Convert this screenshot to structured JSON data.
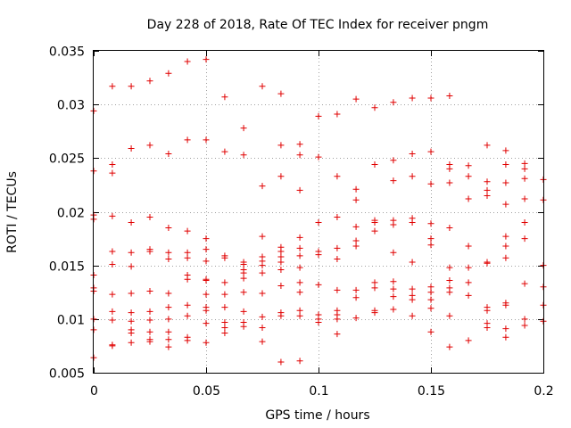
{
  "chart_data": {
    "type": "scatter",
    "title": "Day 228 of 2018, Rate Of TEC Index for receiver pngm",
    "xlabel": "GPS time / hours",
    "ylabel": "ROTI / TECUs",
    "xlim": [
      0,
      0.2
    ],
    "ylim": [
      0.005,
      0.035
    ],
    "grid": true,
    "marker": "+",
    "color": "#e00000",
    "x_ticks": [
      "0",
      "0.05",
      "0.1",
      "0.15",
      "0.2"
    ],
    "y_ticks": [
      "0.005",
      "0.01",
      "0.015",
      "0.02",
      "0.025",
      "0.03",
      "0.035"
    ],
    "series": [
      {
        "name": "ROTI",
        "points": [
          [
            0,
            0.0294
          ],
          [
            0,
            0.0238
          ],
          [
            0,
            0.0197
          ],
          [
            0,
            0.0193
          ],
          [
            0,
            0.0141
          ],
          [
            0,
            0.0129
          ],
          [
            0,
            0.0126
          ],
          [
            0,
            0.01
          ],
          [
            0,
            0.009
          ],
          [
            0,
            0.0064
          ],
          [
            0.0083,
            0.0317
          ],
          [
            0.0083,
            0.0244
          ],
          [
            0.0083,
            0.0236
          ],
          [
            0.0083,
            0.0196
          ],
          [
            0.0083,
            0.0163
          ],
          [
            0.0083,
            0.0151
          ],
          [
            0.0083,
            0.0123
          ],
          [
            0.0083,
            0.0107
          ],
          [
            0.0083,
            0.0099
          ],
          [
            0.0083,
            0.0076
          ],
          [
            0.0083,
            0.0075
          ],
          [
            0.0167,
            0.0317
          ],
          [
            0.0167,
            0.0259
          ],
          [
            0.0167,
            0.019
          ],
          [
            0.0167,
            0.0162
          ],
          [
            0.0167,
            0.0149
          ],
          [
            0.0167,
            0.0124
          ],
          [
            0.0167,
            0.0106
          ],
          [
            0.0167,
            0.0098
          ],
          [
            0.0167,
            0.009
          ],
          [
            0.0167,
            0.0087
          ],
          [
            0.0167,
            0.0078
          ],
          [
            0.025,
            0.0322
          ],
          [
            0.025,
            0.0262
          ],
          [
            0.025,
            0.0195
          ],
          [
            0.025,
            0.0165
          ],
          [
            0.025,
            0.0163
          ],
          [
            0.025,
            0.0126
          ],
          [
            0.025,
            0.0107
          ],
          [
            0.025,
            0.0099
          ],
          [
            0.025,
            0.0088
          ],
          [
            0.025,
            0.0081
          ],
          [
            0.025,
            0.0079
          ],
          [
            0.0333,
            0.0329
          ],
          [
            0.0333,
            0.0254
          ],
          [
            0.0333,
            0.0185
          ],
          [
            0.0333,
            0.0162
          ],
          [
            0.0333,
            0.0156
          ],
          [
            0.0333,
            0.0124
          ],
          [
            0.0333,
            0.0111
          ],
          [
            0.0333,
            0.01
          ],
          [
            0.0333,
            0.0088
          ],
          [
            0.0333,
            0.0081
          ],
          [
            0.0333,
            0.0074
          ],
          [
            0.0417,
            0.034
          ],
          [
            0.0417,
            0.0267
          ],
          [
            0.0417,
            0.0182
          ],
          [
            0.0417,
            0.0162
          ],
          [
            0.0417,
            0.0157
          ],
          [
            0.0417,
            0.0141
          ],
          [
            0.0417,
            0.0137
          ],
          [
            0.0417,
            0.0113
          ],
          [
            0.0417,
            0.0103
          ],
          [
            0.0417,
            0.0083
          ],
          [
            0.0417,
            0.008
          ],
          [
            0.05,
            0.0342
          ],
          [
            0.05,
            0.0267
          ],
          [
            0.05,
            0.0175
          ],
          [
            0.05,
            0.0165
          ],
          [
            0.05,
            0.0154
          ],
          [
            0.05,
            0.0137
          ],
          [
            0.05,
            0.0136
          ],
          [
            0.05,
            0.0123
          ],
          [
            0.05,
            0.0111
          ],
          [
            0.05,
            0.0108
          ],
          [
            0.05,
            0.0096
          ],
          [
            0.05,
            0.0078
          ],
          [
            0.0583,
            0.0307
          ],
          [
            0.0583,
            0.0256
          ],
          [
            0.0583,
            0.0159
          ],
          [
            0.0583,
            0.0157
          ],
          [
            0.0583,
            0.0134
          ],
          [
            0.0583,
            0.0123
          ],
          [
            0.0583,
            0.0111
          ],
          [
            0.0583,
            0.0097
          ],
          [
            0.0583,
            0.0092
          ],
          [
            0.0583,
            0.0087
          ],
          [
            0.0667,
            0.0278
          ],
          [
            0.0667,
            0.0253
          ],
          [
            0.0667,
            0.0153
          ],
          [
            0.0667,
            0.0151
          ],
          [
            0.0667,
            0.0146
          ],
          [
            0.0667,
            0.0143
          ],
          [
            0.0667,
            0.0138
          ],
          [
            0.0667,
            0.0125
          ],
          [
            0.0667,
            0.0107
          ],
          [
            0.0667,
            0.0097
          ],
          [
            0.0667,
            0.0093
          ],
          [
            0.075,
            0.0317
          ],
          [
            0.075,
            0.0224
          ],
          [
            0.075,
            0.0177
          ],
          [
            0.075,
            0.0158
          ],
          [
            0.075,
            0.0154
          ],
          [
            0.075,
            0.015
          ],
          [
            0.075,
            0.0143
          ],
          [
            0.075,
            0.0124
          ],
          [
            0.075,
            0.0102
          ],
          [
            0.075,
            0.0092
          ],
          [
            0.075,
            0.0079
          ],
          [
            0.0833,
            0.031
          ],
          [
            0.0833,
            0.0262
          ],
          [
            0.0833,
            0.0233
          ],
          [
            0.0833,
            0.0167
          ],
          [
            0.0833,
            0.0163
          ],
          [
            0.0833,
            0.0158
          ],
          [
            0.0833,
            0.0153
          ],
          [
            0.0833,
            0.0146
          ],
          [
            0.0833,
            0.0131
          ],
          [
            0.0833,
            0.0106
          ],
          [
            0.0833,
            0.0103
          ],
          [
            0.0833,
            0.006
          ],
          [
            0.0917,
            0.0263
          ],
          [
            0.0917,
            0.0253
          ],
          [
            0.0917,
            0.022
          ],
          [
            0.0917,
            0.0176
          ],
          [
            0.0917,
            0.0166
          ],
          [
            0.0917,
            0.0159
          ],
          [
            0.0917,
            0.0148
          ],
          [
            0.0917,
            0.0134
          ],
          [
            0.0917,
            0.0125
          ],
          [
            0.0917,
            0.0108
          ],
          [
            0.0917,
            0.0103
          ],
          [
            0.0917,
            0.0061
          ],
          [
            0.1,
            0.0289
          ],
          [
            0.1,
            0.0251
          ],
          [
            0.1,
            0.019
          ],
          [
            0.1,
            0.0163
          ],
          [
            0.1,
            0.016
          ],
          [
            0.1,
            0.0132
          ],
          [
            0.1,
            0.0104
          ],
          [
            0.1,
            0.01
          ],
          [
            0.1,
            0.0097
          ],
          [
            0.1083,
            0.0291
          ],
          [
            0.1083,
            0.0233
          ],
          [
            0.1083,
            0.0195
          ],
          [
            0.1083,
            0.0166
          ],
          [
            0.1083,
            0.0156
          ],
          [
            0.1083,
            0.0127
          ],
          [
            0.1083,
            0.0108
          ],
          [
            0.1083,
            0.0104
          ],
          [
            0.1083,
            0.01
          ],
          [
            0.1083,
            0.0086
          ],
          [
            0.1167,
            0.0305
          ],
          [
            0.1167,
            0.0221
          ],
          [
            0.1167,
            0.0211
          ],
          [
            0.1167,
            0.0186
          ],
          [
            0.1167,
            0.0173
          ],
          [
            0.1167,
            0.0168
          ],
          [
            0.1167,
            0.0127
          ],
          [
            0.1167,
            0.012
          ],
          [
            0.1167,
            0.0101
          ],
          [
            0.125,
            0.0297
          ],
          [
            0.125,
            0.0244
          ],
          [
            0.125,
            0.0192
          ],
          [
            0.125,
            0.019
          ],
          [
            0.125,
            0.0182
          ],
          [
            0.125,
            0.0134
          ],
          [
            0.125,
            0.0129
          ],
          [
            0.125,
            0.0108
          ],
          [
            0.125,
            0.0106
          ],
          [
            0.1333,
            0.0302
          ],
          [
            0.1333,
            0.0248
          ],
          [
            0.1333,
            0.0229
          ],
          [
            0.1333,
            0.0192
          ],
          [
            0.1333,
            0.0188
          ],
          [
            0.1333,
            0.0162
          ],
          [
            0.1333,
            0.0135
          ],
          [
            0.1333,
            0.0128
          ],
          [
            0.1333,
            0.0121
          ],
          [
            0.1333,
            0.0109
          ],
          [
            0.1417,
            0.0306
          ],
          [
            0.1417,
            0.0254
          ],
          [
            0.1417,
            0.0233
          ],
          [
            0.1417,
            0.0194
          ],
          [
            0.1417,
            0.019
          ],
          [
            0.1417,
            0.0153
          ],
          [
            0.1417,
            0.0128
          ],
          [
            0.1417,
            0.0122
          ],
          [
            0.1417,
            0.0118
          ],
          [
            0.1417,
            0.0103
          ],
          [
            0.15,
            0.0306
          ],
          [
            0.15,
            0.0256
          ],
          [
            0.15,
            0.0226
          ],
          [
            0.15,
            0.0189
          ],
          [
            0.15,
            0.0175
          ],
          [
            0.15,
            0.0169
          ],
          [
            0.15,
            0.013
          ],
          [
            0.15,
            0.0125
          ],
          [
            0.15,
            0.0118
          ],
          [
            0.15,
            0.011
          ],
          [
            0.15,
            0.0088
          ],
          [
            0.1583,
            0.0308
          ],
          [
            0.1583,
            0.0244
          ],
          [
            0.1583,
            0.024
          ],
          [
            0.1583,
            0.0227
          ],
          [
            0.1583,
            0.0185
          ],
          [
            0.1583,
            0.0148
          ],
          [
            0.1583,
            0.0136
          ],
          [
            0.1583,
            0.0129
          ],
          [
            0.1583,
            0.0125
          ],
          [
            0.1583,
            0.0103
          ],
          [
            0.1583,
            0.0074
          ],
          [
            0.1667,
            0.0243
          ],
          [
            0.1667,
            0.0233
          ],
          [
            0.1667,
            0.0212
          ],
          [
            0.1667,
            0.0168
          ],
          [
            0.1667,
            0.0148
          ],
          [
            0.1667,
            0.0134
          ],
          [
            0.1667,
            0.0122
          ],
          [
            0.1667,
            0.008
          ],
          [
            0.175,
            0.0262
          ],
          [
            0.175,
            0.0228
          ],
          [
            0.175,
            0.022
          ],
          [
            0.175,
            0.0215
          ],
          [
            0.175,
            0.0153
          ],
          [
            0.175,
            0.0152
          ],
          [
            0.175,
            0.0111
          ],
          [
            0.175,
            0.0108
          ],
          [
            0.175,
            0.0096
          ],
          [
            0.175,
            0.0092
          ],
          [
            0.1833,
            0.0257
          ],
          [
            0.1833,
            0.0244
          ],
          [
            0.1833,
            0.0227
          ],
          [
            0.1833,
            0.0207
          ],
          [
            0.1833,
            0.0177
          ],
          [
            0.1833,
            0.0168
          ],
          [
            0.1833,
            0.0157
          ],
          [
            0.1833,
            0.0115
          ],
          [
            0.1833,
            0.0113
          ],
          [
            0.1833,
            0.0091
          ],
          [
            0.1833,
            0.0083
          ],
          [
            0.1917,
            0.0245
          ],
          [
            0.1917,
            0.024
          ],
          [
            0.1917,
            0.0231
          ],
          [
            0.1917,
            0.0212
          ],
          [
            0.1917,
            0.019
          ],
          [
            0.1917,
            0.0175
          ],
          [
            0.1917,
            0.0133
          ],
          [
            0.1917,
            0.01
          ],
          [
            0.1917,
            0.0094
          ],
          [
            0.2,
            0.023
          ],
          [
            0.2,
            0.0211
          ],
          [
            0.2,
            0.015
          ],
          [
            0.2,
            0.013
          ],
          [
            0.2,
            0.0113
          ],
          [
            0.2,
            0.0098
          ]
        ]
      }
    ]
  }
}
